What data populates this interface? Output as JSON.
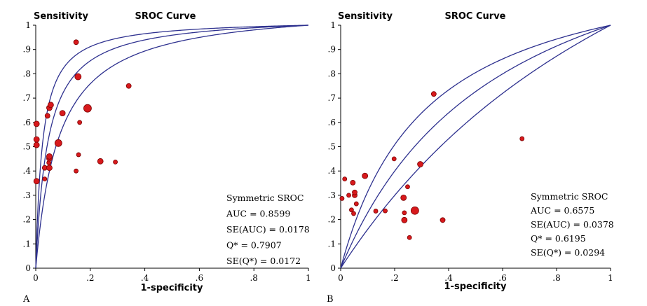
{
  "chart_data": [
    {
      "type": "scatter",
      "panel_label": "A",
      "title": "SROC Curve",
      "ylabel": "Sensitivity",
      "xlabel": "1-specificity",
      "xlim": [
        0,
        1
      ],
      "ylim": [
        0,
        1
      ],
      "x_ticks": [
        "0",
        ".2",
        ".4",
        ".6",
        ".8",
        "1"
      ],
      "y_ticks": [
        "0",
        ".1",
        ".2",
        ".3",
        ".4",
        ".5",
        ".6",
        ".7",
        ".8",
        ".9",
        "1"
      ],
      "annotation": [
        "Symmetric SROC",
        "AUC = 0.8599",
        "SE(AUC) = 0.0178",
        "Q* = 0.7907",
        "SE(Q*) = 0.0172"
      ],
      "sroc_dor": [
        41.3,
        23.3,
        12.6
      ],
      "points": [
        {
          "x": 0.003,
          "y": 0.358,
          "r": 4
        },
        {
          "x": 0.003,
          "y": 0.507,
          "r": 4
        },
        {
          "x": 0.003,
          "y": 0.53,
          "r": 4
        },
        {
          "x": 0.003,
          "y": 0.594,
          "r": 4
        },
        {
          "x": 0.033,
          "y": 0.367,
          "r": 3
        },
        {
          "x": 0.033,
          "y": 0.413,
          "r": 3.5
        },
        {
          "x": 0.043,
          "y": 0.627,
          "r": 3.5
        },
        {
          "x": 0.048,
          "y": 0.434,
          "r": 3
        },
        {
          "x": 0.05,
          "y": 0.413,
          "r": 4
        },
        {
          "x": 0.05,
          "y": 0.452,
          "r": 4
        },
        {
          "x": 0.05,
          "y": 0.46,
          "r": 4
        },
        {
          "x": 0.05,
          "y": 0.66,
          "r": 4
        },
        {
          "x": 0.055,
          "y": 0.672,
          "r": 4
        },
        {
          "x": 0.083,
          "y": 0.515,
          "r": 5
        },
        {
          "x": 0.098,
          "y": 0.638,
          "r": 4
        },
        {
          "x": 0.148,
          "y": 0.93,
          "r": 3.5
        },
        {
          "x": 0.148,
          "y": 0.4,
          "r": 3
        },
        {
          "x": 0.155,
          "y": 0.788,
          "r": 4.5
        },
        {
          "x": 0.157,
          "y": 0.467,
          "r": 3
        },
        {
          "x": 0.161,
          "y": 0.6,
          "r": 3
        },
        {
          "x": 0.19,
          "y": 0.658,
          "r": 5.5
        },
        {
          "x": 0.237,
          "y": 0.44,
          "r": 4
        },
        {
          "x": 0.292,
          "y": 0.437,
          "r": 3
        },
        {
          "x": 0.341,
          "y": 0.75,
          "r": 3.5
        }
      ]
    },
    {
      "type": "scatter",
      "panel_label": "B",
      "title": "SROC Curve",
      "ylabel": "Sensitivity",
      "xlabel": "1-specificity",
      "xlim": [
        0,
        1
      ],
      "ylim": [
        0,
        1
      ],
      "x_ticks": [
        "0",
        ".2",
        ".4",
        ".6",
        ".8",
        "1"
      ],
      "y_ticks": [
        "0",
        ".1",
        ".2",
        ".3",
        ".4",
        ".5",
        ".6",
        ".7",
        ".8",
        ".9",
        "1"
      ],
      "annotation": [
        "Symmetric SROC",
        "AUC = 0.6575",
        "SE(AUC) = 0.0378",
        "Q* = 0.6195",
        "SE(Q*) = 0.0294"
      ],
      "sroc_dor": [
        4.13,
        2.66,
        1.71
      ],
      "points": [
        {
          "x": 0.005,
          "y": 0.287,
          "r": 3
        },
        {
          "x": 0.015,
          "y": 0.367,
          "r": 3
        },
        {
          "x": 0.03,
          "y": 0.3,
          "r": 3
        },
        {
          "x": 0.04,
          "y": 0.24,
          "r": 3
        },
        {
          "x": 0.045,
          "y": 0.352,
          "r": 3.5
        },
        {
          "x": 0.048,
          "y": 0.225,
          "r": 3
        },
        {
          "x": 0.052,
          "y": 0.3,
          "r": 3.5
        },
        {
          "x": 0.052,
          "y": 0.312,
          "r": 3.5
        },
        {
          "x": 0.058,
          "y": 0.265,
          "r": 3
        },
        {
          "x": 0.09,
          "y": 0.38,
          "r": 4
        },
        {
          "x": 0.13,
          "y": 0.235,
          "r": 3
        },
        {
          "x": 0.165,
          "y": 0.236,
          "r": 3
        },
        {
          "x": 0.198,
          "y": 0.45,
          "r": 3
        },
        {
          "x": 0.233,
          "y": 0.29,
          "r": 4
        },
        {
          "x": 0.236,
          "y": 0.228,
          "r": 3
        },
        {
          "x": 0.236,
          "y": 0.198,
          "r": 4
        },
        {
          "x": 0.248,
          "y": 0.335,
          "r": 3
        },
        {
          "x": 0.255,
          "y": 0.126,
          "r": 3
        },
        {
          "x": 0.275,
          "y": 0.237,
          "r": 5.5
        },
        {
          "x": 0.295,
          "y": 0.428,
          "r": 4
        },
        {
          "x": 0.345,
          "y": 0.717,
          "r": 3.5
        },
        {
          "x": 0.378,
          "y": 0.198,
          "r": 3.5
        },
        {
          "x": 0.672,
          "y": 0.533,
          "r": 3
        }
      ]
    }
  ],
  "colors": {
    "curve": "#2e318f",
    "point_fill": "#d7191c",
    "point_stroke": "#7a0000",
    "axis": "#000000"
  }
}
